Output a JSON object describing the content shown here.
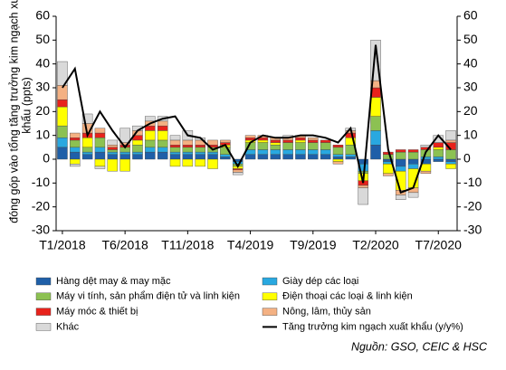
{
  "chart_data": {
    "type": "stacked-bar-line",
    "ylabel": [
      "đóng góp vào tổng tăng trưởng kim ngạch xuất",
      "khẩu (ppts)"
    ],
    "categories": [
      "T1/2018",
      null,
      null,
      null,
      null,
      "T6/2018",
      null,
      null,
      null,
      null,
      "T11/2018",
      null,
      null,
      null,
      null,
      "T4/2019",
      null,
      null,
      null,
      null,
      "T9/2019",
      null,
      null,
      null,
      null,
      "T2/2020",
      null,
      null,
      null,
      null,
      "T7/2020",
      null
    ],
    "series": [
      {
        "name": "Hàng dệt may & may mặc",
        "color": "#1f5fa8",
        "values": [
          5,
          3,
          2,
          3,
          2,
          2,
          2,
          3,
          3,
          2,
          2,
          2,
          2,
          1,
          -1,
          2,
          2,
          2,
          2,
          2,
          2,
          2,
          1,
          1,
          -2,
          6,
          -1,
          -3,
          -2,
          -2,
          -1,
          -1
        ]
      },
      {
        "name": "Giày dép các loại",
        "color": "#29a8e0",
        "values": [
          4,
          2,
          1,
          2,
          1,
          1,
          1,
          2,
          2,
          1,
          1,
          1,
          1,
          1,
          -1,
          2,
          2,
          2,
          2,
          2,
          2,
          2,
          1,
          1,
          -3,
          6,
          -1,
          -2,
          -2,
          1,
          1,
          -1
        ]
      },
      {
        "name": "Máy vi tính, sản phẩm điện tử và linh kiện",
        "color": "#8cc152",
        "values": [
          5,
          3,
          2,
          4,
          1,
          2,
          3,
          3,
          3,
          2,
          2,
          2,
          2,
          3,
          -1,
          3,
          3,
          2,
          3,
          3,
          3,
          3,
          3,
          4,
          -1,
          6,
          2,
          3,
          3,
          3,
          3,
          4
        ]
      },
      {
        "name": "Điện thoại các loại & linh kiện",
        "color": "#ffff00",
        "values": [
          8,
          -2,
          4,
          -3,
          -5,
          -5,
          2,
          4,
          4,
          -3,
          -3,
          -3,
          -4,
          1,
          -1,
          1,
          1,
          1,
          0,
          1,
          0,
          0,
          -1,
          3,
          -3,
          8,
          -4,
          -8,
          -8,
          -3,
          1,
          -2
        ]
      },
      {
        "name": "Máy móc & thiết bị",
        "color": "#e8221b",
        "values": [
          3,
          1,
          2,
          2,
          1,
          1,
          2,
          2,
          2,
          1,
          1,
          1,
          1,
          1,
          -0.5,
          1,
          1,
          1,
          1,
          1,
          1,
          1,
          1,
          2,
          -2,
          4,
          1,
          1,
          1,
          1,
          2,
          3
        ]
      },
      {
        "name": "Nông, lâm, thủy sản",
        "color": "#f4b183",
        "values": [
          6,
          2,
          4,
          2,
          1,
          1,
          2,
          2,
          2,
          2,
          2,
          2,
          2,
          1,
          -1,
          1,
          1,
          1,
          1,
          1,
          1,
          0,
          -1,
          1,
          -1,
          3,
          -1,
          -2,
          -2,
          -1,
          0,
          1
        ]
      },
      {
        "name": "Khác",
        "color": "#d9d9d9",
        "values": [
          10,
          -1,
          4,
          -1,
          2,
          6,
          2,
          2,
          2,
          2,
          4,
          1,
          0,
          0,
          -1,
          0,
          0,
          0,
          1,
          0,
          0,
          0,
          0,
          1,
          -7,
          17,
          0,
          -2,
          -2,
          1,
          3,
          4
        ]
      }
    ],
    "line": {
      "name": "Tăng trưởng kim ngạch xuất khẩu (y/y%)",
      "color": "#000000",
      "values": [
        30,
        38,
        10,
        20,
        12,
        5,
        12,
        15,
        17,
        18,
        10,
        9,
        4,
        6,
        -3,
        7,
        10,
        9,
        9,
        10,
        10,
        9,
        7,
        13,
        -10,
        48,
        4,
        -14,
        -12,
        3,
        10,
        4
      ]
    },
    "ylim": [
      -30,
      60
    ],
    "yticks": [
      -30,
      -20,
      -10,
      0,
      10,
      20,
      30,
      40,
      50,
      60
    ],
    "y2lim": [
      -30,
      60
    ],
    "y2ticks": [
      -30,
      -20,
      -10,
      0,
      10,
      20,
      30,
      40,
      50,
      60
    ],
    "source": "Nguồn: GSO, CEIC & HSC"
  }
}
